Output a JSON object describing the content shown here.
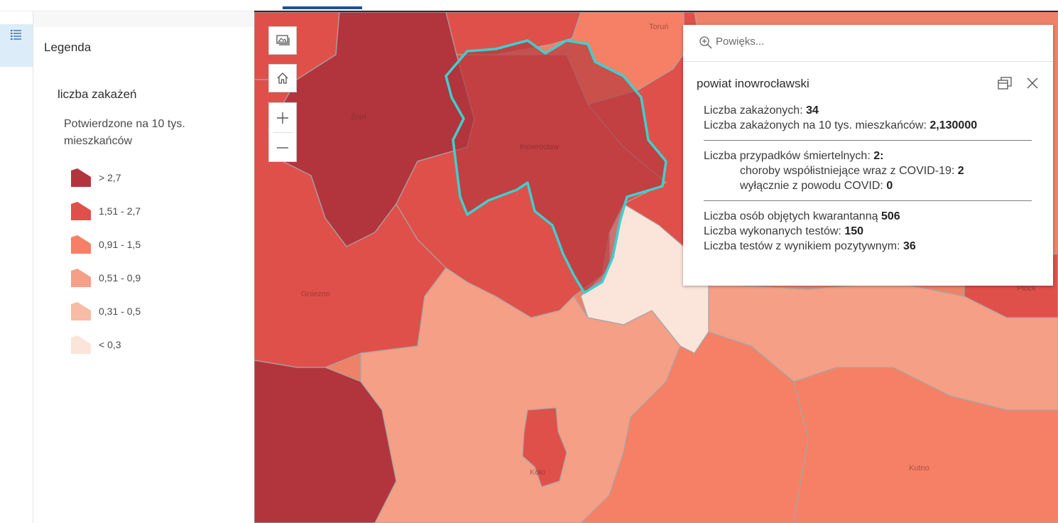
{
  "legend": {
    "title": "Legenda",
    "layer_title": "liczba zakażeń",
    "field_label": "Potwierdzone na 10 tys. mieszkańców",
    "items": [
      {
        "label": "> 2,7",
        "color": "#b2353e"
      },
      {
        "label": "1,51 - 2,7",
        "color": "#e0504a"
      },
      {
        "label": "0,91 - 1,5",
        "color": "#f58065"
      },
      {
        "label": "0,51 - 0,9",
        "color": "#f59f86"
      },
      {
        "label": "0,31 - 0,5",
        "color": "#f8bba5"
      },
      {
        "label": "< 0,3",
        "color": "#fbe4da"
      }
    ]
  },
  "map": {
    "place_labels": [
      "Toruń",
      "Żnin",
      "Inowrocław",
      "Gniezno",
      "Koło",
      "Kutno",
      "Płock"
    ],
    "selected_outline_color": "#3cd0d0"
  },
  "popup": {
    "search_label": "Powięks...",
    "title": "powiat inowrocławski",
    "infected_label": "Liczba zakażonych: ",
    "infected_value": "34",
    "infected_per10k_label": "Liczba zakażonych na 10 tys. mieszkańców: ",
    "infected_per10k_value": "2,130000",
    "deaths_label": "Liczba przypadków śmiertelnych: ",
    "deaths_value": "2:",
    "comorbid_label": "choroby współistniejące wraz z COVID-19: ",
    "comorbid_value": "2",
    "covid_only_label": "wyłącznie z powodu COVID: ",
    "covid_only_value": "0",
    "quarantine_label": "Liczba osób objętych kwarantanną ",
    "quarantine_value": "506",
    "tests_label": "Liczba wykonanych testów: ",
    "tests_value": "150",
    "positive_label": "Liczba testów z wynikiem pozytywnym: ",
    "positive_value": "36"
  },
  "icons": {
    "legend_toggle": "legend-list-icon",
    "basemap": "basemap-gallery-icon",
    "home": "home-icon",
    "zoom_in": "plus-icon",
    "zoom_out": "minus-icon",
    "search": "zoom-magnifier-icon",
    "dock": "dock-icon",
    "close": "close-icon"
  }
}
